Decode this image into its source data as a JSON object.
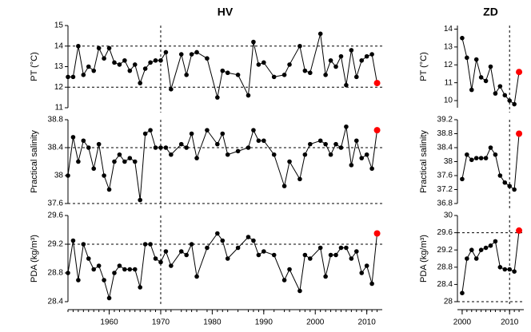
{
  "chart_data": [
    {
      "type": "line",
      "title": "HV",
      "color": "#000000",
      "last_color": "#ff0000",
      "ref_dash": "3,3",
      "x": [
        1952,
        1953,
        1954,
        1955,
        1956,
        1957,
        1958,
        1959,
        1960,
        1961,
        1962,
        1963,
        1964,
        1965,
        1966,
        1967,
        1968,
        1969,
        1970,
        1971,
        1972,
        1974,
        1975,
        1976,
        1977,
        1979,
        1981,
        1982,
        1983,
        1985,
        1987,
        1988,
        1989,
        1990,
        1992,
        1994,
        1995,
        1997,
        1998,
        1999,
        2001,
        2002,
        2003,
        2004,
        2005,
        2006,
        2007,
        2008,
        2009,
        2010,
        2011,
        2012
      ],
      "xlim": [
        1952,
        2013
      ],
      "xticks": [
        1960,
        1970,
        1980,
        1990,
        2000,
        2010
      ],
      "vline": 1970,
      "panels": [
        {
          "ylabel": "PT (°C)",
          "ylim": [
            11,
            15
          ],
          "yticks": [
            11,
            12,
            13,
            14,
            15
          ],
          "hlines": [
            12,
            14
          ],
          "values": [
            12.5,
            12.5,
            14.0,
            12.6,
            13.0,
            12.8,
            13.9,
            13.4,
            13.9,
            13.2,
            13.1,
            13.3,
            12.8,
            13.1,
            12.2,
            12.9,
            13.2,
            13.3,
            13.3,
            13.7,
            11.9,
            13.6,
            12.6,
            13.6,
            13.7,
            13.4,
            11.5,
            12.8,
            12.7,
            12.6,
            11.6,
            14.2,
            13.1,
            13.2,
            12.5,
            12.6,
            13.1,
            14.0,
            12.8,
            12.7,
            14.6,
            12.6,
            13.3,
            13.0,
            13.5,
            12.1,
            13.8,
            12.5,
            13.3,
            13.5,
            13.6,
            12.2
          ]
        },
        {
          "ylabel": "Practical salinity",
          "ylim": [
            37.6,
            38.8
          ],
          "yticks": [
            37.6,
            38,
            38.4,
            38.8
          ],
          "hlines": [
            37.6,
            38.4
          ],
          "values": [
            38.0,
            38.55,
            38.2,
            38.5,
            38.4,
            38.1,
            38.45,
            38.0,
            37.8,
            38.2,
            38.3,
            38.2,
            38.25,
            38.2,
            37.65,
            38.6,
            38.65,
            38.4,
            38.4,
            38.4,
            38.3,
            38.45,
            38.4,
            38.6,
            38.25,
            38.65,
            38.45,
            38.6,
            38.3,
            38.35,
            38.4,
            38.65,
            38.5,
            38.5,
            38.3,
            37.85,
            38.2,
            37.95,
            38.3,
            38.45,
            38.5,
            38.45,
            38.3,
            38.45,
            38.4,
            38.7,
            38.15,
            38.5,
            38.25,
            38.3,
            38.1,
            38.65
          ]
        },
        {
          "ylabel": "PDA (kg/m³)",
          "ylim": [
            28.4,
            29.6
          ],
          "yticks": [
            28.4,
            28.8,
            29.2,
            29.6
          ],
          "hlines": [
            29.2
          ],
          "values": [
            28.8,
            29.25,
            28.7,
            29.2,
            29.0,
            28.85,
            28.9,
            28.7,
            28.45,
            28.8,
            28.9,
            28.85,
            28.85,
            28.85,
            28.6,
            29.2,
            29.2,
            29.0,
            28.95,
            29.1,
            28.9,
            29.1,
            29.05,
            29.2,
            28.75,
            29.15,
            29.35,
            29.25,
            29.0,
            29.15,
            29.3,
            29.25,
            29.05,
            29.1,
            29.05,
            28.7,
            28.85,
            28.55,
            29.05,
            29.0,
            29.15,
            28.75,
            29.05,
            29.05,
            29.15,
            29.15,
            29.0,
            29.1,
            28.8,
            28.9,
            28.65,
            29.35
          ]
        }
      ]
    },
    {
      "type": "line",
      "title": "ZD",
      "color": "#000000",
      "last_color": "#ff0000",
      "ref_dash": "3,3",
      "x": [
        2000,
        2001,
        2002,
        2003,
        2004,
        2005,
        2006,
        2007,
        2008,
        2009,
        2010,
        2011,
        2012
      ],
      "xlim": [
        1999,
        2013
      ],
      "xticks": [
        2000,
        2010
      ],
      "vline": 2010,
      "panels": [
        {
          "ylabel": "PT (°C)",
          "ylim": [
            9.6,
            14.2
          ],
          "yticks": [
            10,
            11,
            12,
            13,
            14
          ],
          "hlines": [],
          "values": [
            13.5,
            12.4,
            10.6,
            12.3,
            11.3,
            11.1,
            11.9,
            10.4,
            10.8,
            10.3,
            10.0,
            9.8,
            11.6
          ]
        },
        {
          "ylabel": "Practical salinity",
          "ylim": [
            36.8,
            39.2
          ],
          "yticks": [
            36.8,
            37.2,
            37.6,
            38,
            38.4,
            38.8,
            39.2
          ],
          "hlines": [],
          "values": [
            37.5,
            38.2,
            38.05,
            38.1,
            38.1,
            38.1,
            38.4,
            38.2,
            37.6,
            37.4,
            37.3,
            37.2,
            38.8
          ]
        },
        {
          "ylabel": "PDA (kg/m³)",
          "ylim": [
            28,
            30
          ],
          "yticks": [
            28,
            28.4,
            28.8,
            29.2,
            29.6,
            30
          ],
          "hlines": [
            28,
            29.6
          ],
          "values": [
            28.2,
            29.0,
            29.2,
            29.0,
            29.2,
            29.25,
            29.3,
            29.4,
            28.8,
            28.75,
            28.75,
            28.7,
            29.65
          ]
        }
      ]
    }
  ]
}
